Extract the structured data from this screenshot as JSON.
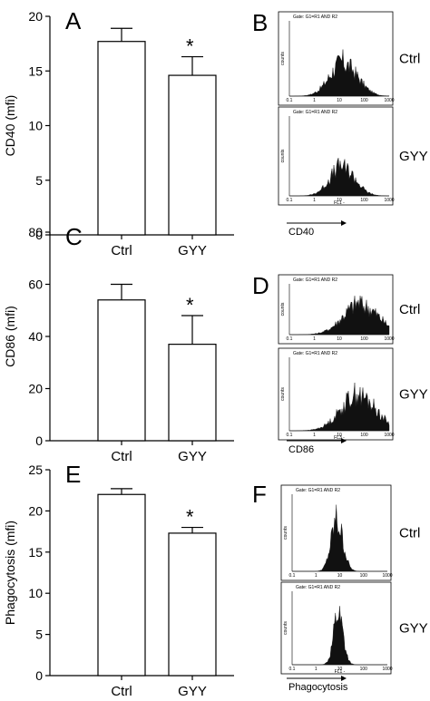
{
  "bar_panels": [
    {
      "letter": "A",
      "chart_data": {
        "type": "bar",
        "categories": [
          "Ctrl",
          "GYY"
        ],
        "values": [
          17.7,
          14.6
        ],
        "errors": [
          1.2,
          1.7
        ],
        "significance": [
          "",
          "*"
        ],
        "ylabel": "CD40 (mfi)",
        "ylim": [
          0,
          20
        ],
        "yticks": [
          0,
          5,
          10,
          15,
          20
        ]
      }
    },
    {
      "letter": "C",
      "chart_data": {
        "type": "bar",
        "categories": [
          "Ctrl",
          "GYY"
        ],
        "values": [
          54,
          37
        ],
        "errors": [
          6,
          11
        ],
        "significance": [
          "",
          "*"
        ],
        "ylabel": "CD86 (mfi)",
        "ylim": [
          0,
          80
        ],
        "yticks": [
          0,
          20,
          40,
          60,
          80
        ]
      }
    },
    {
      "letter": "E",
      "chart_data": {
        "type": "bar",
        "categories": [
          "Ctrl",
          "GYY"
        ],
        "values": [
          22.0,
          17.3
        ],
        "errors": [
          0.7,
          0.7
        ],
        "significance": [
          "",
          "*"
        ],
        "ylabel": "Phagocytosis (mfi)",
        "ylim": [
          0,
          25
        ],
        "yticks": [
          0,
          5,
          10,
          15,
          20,
          25
        ]
      }
    }
  ],
  "hist_panels": [
    {
      "letter": "B",
      "marker": "CD40",
      "channel": "FL1",
      "counts_label": "counts",
      "gate": "Gate: G1=R1 AND R2",
      "xticks": [
        "0.1",
        "1",
        "10",
        "100",
        "1000"
      ],
      "groups": [
        {
          "label": "Ctrl",
          "peak_log": 1.2,
          "spread": 0.55,
          "height": 0.55
        },
        {
          "label": "GYY",
          "peak_log": 1.15,
          "spread": 0.5,
          "height": 0.45
        }
      ]
    },
    {
      "letter": "D",
      "marker": "CD86",
      "channel": "FL3",
      "counts_label": "counts",
      "gate": "Gate: G1=R1 AND R2",
      "xticks": [
        "0.1",
        "1",
        "10",
        "100",
        "1000"
      ],
      "groups": [
        {
          "label": "Ctrl",
          "peak_log": 1.9,
          "spread": 0.7,
          "height": 0.75
        },
        {
          "label": "GYY",
          "peak_log": 1.8,
          "spread": 0.7,
          "height": 0.6
        }
      ]
    },
    {
      "letter": "F",
      "marker": "Phagocytosis",
      "channel": "FL1",
      "counts_label": "counts",
      "gate": "Gate: G1=R1 AND R2",
      "xticks": [
        "0.1",
        "1",
        "10",
        "100",
        "1000"
      ],
      "groups": [
        {
          "label": "Ctrl",
          "peak_log": 0.9,
          "spread": 0.25,
          "height": 0.8
        },
        {
          "label": "GYY",
          "peak_log": 0.95,
          "spread": 0.2,
          "height": 0.9
        }
      ]
    }
  ]
}
